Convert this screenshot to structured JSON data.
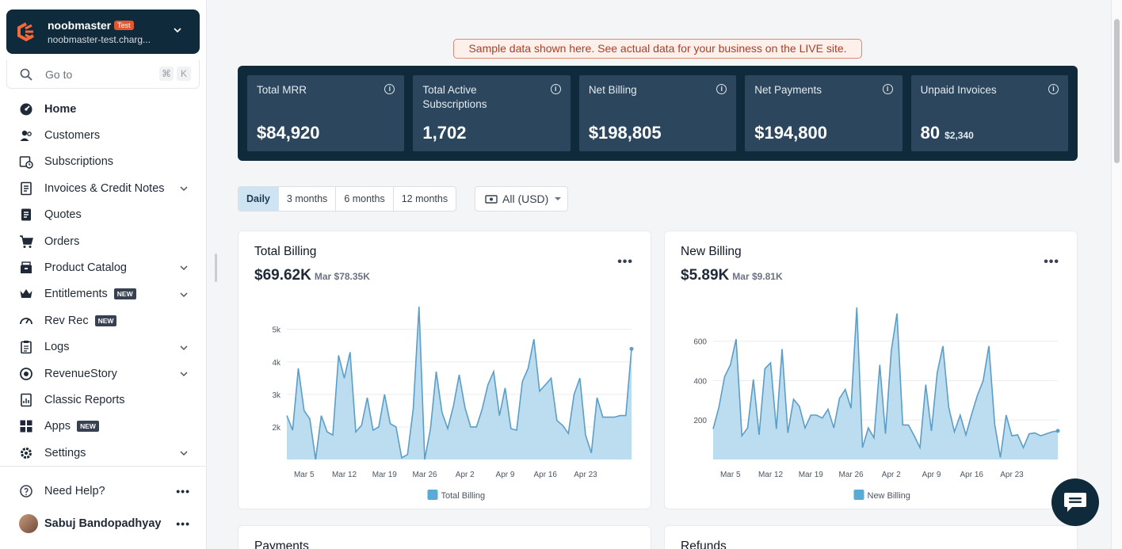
{
  "site": {
    "name": "noobmaster",
    "badge": "Test",
    "url": "noobmaster-test.charg..."
  },
  "goto": {
    "placeholder": "Go to",
    "k1": "⌘",
    "k2": "K"
  },
  "nav": [
    {
      "label": "Home",
      "icon": "dashboard-icon",
      "active": true
    },
    {
      "label": "Customers",
      "icon": "users-icon"
    },
    {
      "label": "Subscriptions",
      "icon": "calendar-clock-icon"
    },
    {
      "label": "Invoices & Credit Notes",
      "icon": "invoice-icon",
      "expand": true
    },
    {
      "label": "Quotes",
      "icon": "quote-icon"
    },
    {
      "label": "Orders",
      "icon": "cart-icon"
    },
    {
      "label": "Product Catalog",
      "icon": "box-icon",
      "expand": true
    },
    {
      "label": "Entitlements",
      "icon": "crown-icon",
      "badge": "NEW",
      "expand": true
    },
    {
      "label": "Rev Rec",
      "icon": "gauge-icon",
      "badge": "NEW"
    },
    {
      "label": "Logs",
      "icon": "clipboard-icon",
      "expand": true
    },
    {
      "label": "RevenueStory",
      "icon": "target-icon",
      "expand": true
    },
    {
      "label": "Classic Reports",
      "icon": "report-icon"
    },
    {
      "label": "Apps",
      "icon": "grid-icon",
      "badge": "NEW"
    },
    {
      "label": "Settings",
      "icon": "gear-icon",
      "expand": true
    }
  ],
  "help": {
    "label": "Need Help?"
  },
  "user": {
    "name": "Sabuj Bandopadhyay"
  },
  "banner": "Sample data shown here. See actual data for your business on the LIVE site.",
  "kpis": [
    {
      "label": "Total MRR",
      "value": "$84,920"
    },
    {
      "label": "Total Active Subscriptions",
      "value": "1,702"
    },
    {
      "label": "Net Billing",
      "value": "$198,805"
    },
    {
      "label": "Net Payments",
      "value": "$194,800"
    },
    {
      "label": "Unpaid Invoices",
      "value": "80",
      "sub": "$2,340"
    }
  ],
  "ranges": [
    "Daily",
    "3 months",
    "6 months",
    "12 months"
  ],
  "selected_range": "Daily",
  "currency": "All (USD)",
  "colors": {
    "accent": "#0f2a3a",
    "area": "#bcdcef",
    "line": "#5b9ec7",
    "banner": "#a6402b"
  },
  "cards": {
    "total_billing": {
      "title": "Total Billing",
      "value": "$69.62K",
      "prev": "Mar $78.35K"
    },
    "new_billing": {
      "title": "New Billing",
      "value": "$5.89K",
      "prev": "Mar $9.81K"
    },
    "payments": {
      "title": "Payments"
    },
    "refunds": {
      "title": "Refunds"
    }
  },
  "chart_data": [
    {
      "type": "area",
      "title": "Total Billing",
      "series": [
        {
          "name": "Total Billing",
          "values": [
            2350,
            1900,
            3800,
            2500,
            2250,
            1000,
            2350,
            1850,
            1750,
            4200,
            3500,
            4300,
            1850,
            2050,
            2900,
            1900,
            2000,
            3000,
            2100,
            2000,
            1050,
            1150,
            2550,
            5700,
            1000,
            1950,
            3700,
            2450,
            1950,
            2650,
            3600,
            2600,
            2000,
            2000,
            2550,
            3300,
            3700,
            2350,
            3200,
            1950,
            1900,
            3400,
            3800,
            4700,
            3100,
            3300,
            3500,
            2200,
            2050,
            1800,
            3000,
            3500,
            1750,
            1200,
            2900,
            2300,
            2300,
            2300,
            2350,
            2350,
            4400
          ]
        }
      ],
      "x_ticks": [
        "Mar 5",
        "Mar 12",
        "Mar 19",
        "Mar 26",
        "Apr 2",
        "Apr 9",
        "Apr 16",
        "Apr 23"
      ],
      "y_ticks": [
        "2k",
        "3k",
        "4k",
        "5k"
      ],
      "ylim": [
        1000,
        5700
      ]
    },
    {
      "type": "area",
      "title": "New Billing",
      "series": [
        {
          "name": "New Billing",
          "values": [
            155,
            265,
            420,
            480,
            610,
            120,
            160,
            405,
            125,
            460,
            490,
            155,
            560,
            135,
            305,
            270,
            160,
            225,
            225,
            210,
            255,
            160,
            310,
            355,
            260,
            770,
            60,
            160,
            110,
            480,
            130,
            550,
            740,
            175,
            175,
            120,
            60,
            380,
            145,
            440,
            575,
            265,
            140,
            225,
            125,
            230,
            325,
            400,
            575,
            180,
            10,
            225,
            120,
            125,
            60,
            130,
            135,
            120,
            130,
            140,
            145
          ]
        }
      ],
      "x_ticks": [
        "Mar 5",
        "Mar 12",
        "Mar 19",
        "Mar 26",
        "Apr 2",
        "Apr 9",
        "Apr 16",
        "Apr 23"
      ],
      "y_ticks": [
        "200",
        "400",
        "600"
      ],
      "ylim": [
        0,
        775
      ]
    }
  ]
}
